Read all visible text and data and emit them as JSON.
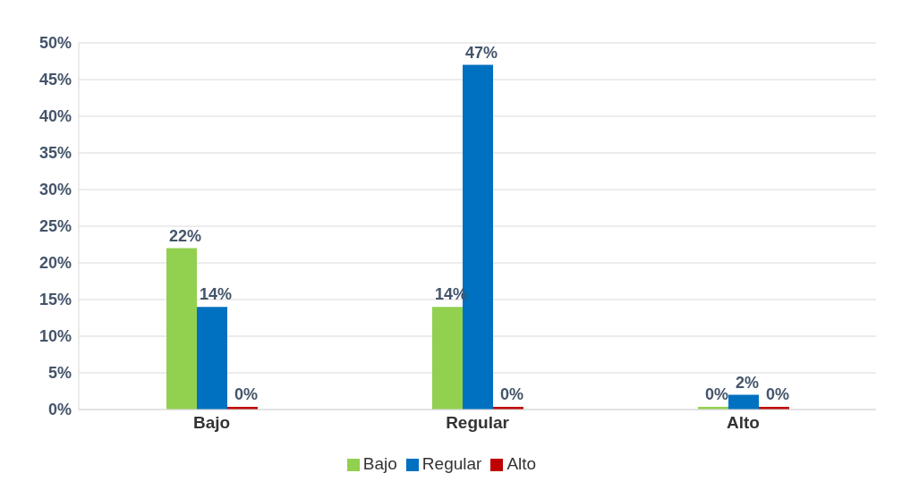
{
  "chart_data": {
    "type": "bar",
    "categories": [
      "Bajo",
      "Regular",
      "Alto"
    ],
    "series": [
      {
        "name": "Bajo",
        "color": "#92d050",
        "values": [
          22,
          14,
          0
        ],
        "value_labels": [
          "22%",
          "14%",
          "0%"
        ]
      },
      {
        "name": "Regular",
        "color": "#0070c0",
        "values": [
          14,
          47,
          2
        ],
        "value_labels": [
          "14%",
          "47%",
          "2%"
        ]
      },
      {
        "name": "Alto",
        "color": "#c00000",
        "values": [
          0,
          0,
          0
        ],
        "value_labels": [
          "0%",
          "0%",
          "0%"
        ]
      }
    ],
    "ylim": [
      0,
      50
    ],
    "yticks": [
      {
        "value": 0,
        "label": "0%"
      },
      {
        "value": 5,
        "label": "5%"
      },
      {
        "value": 10,
        "label": "10%"
      },
      {
        "value": 15,
        "label": "15%"
      },
      {
        "value": 20,
        "label": "20%"
      },
      {
        "value": 25,
        "label": "25%"
      },
      {
        "value": 30,
        "label": "30%"
      },
      {
        "value": 35,
        "label": "35%"
      },
      {
        "value": 40,
        "label": "40%"
      },
      {
        "value": 45,
        "label": "45%"
      },
      {
        "value": 50,
        "label": "50%"
      }
    ],
    "grid": "y",
    "legend": "bottom"
  }
}
